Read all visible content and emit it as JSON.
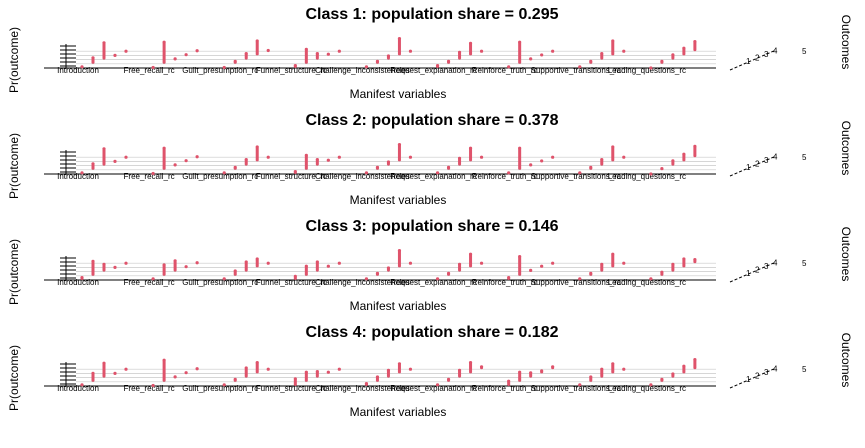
{
  "chart_data": {
    "type": "bar",
    "subtype": "3d-bar (poLCA latent class item-response plot)",
    "xlabel": "Manifest variables",
    "ylabel": "Pr(outcome)",
    "zlabel": "Outcomes",
    "bar_color": "#DF536B",
    "grid": true,
    "variables": [
      "Introduction",
      "Free_recall_rc",
      "Guilt_presumption_rc",
      "Funnel_structure_rc",
      "Challenge_inconsistencies",
      "Request_explanation_rc",
      "Reinforce_truth_rc",
      "Supportive_transitions_rc",
      "Leading_questions_rc"
    ],
    "outcomes": [
      "1",
      "2",
      "3",
      "4",
      "5"
    ],
    "panels": [
      {
        "title": "Class 1: population share = 0.295",
        "values": [
          [
            0.05,
            0.25,
            0.7,
            0.0,
            0.0
          ],
          [
            0.02,
            0.9,
            0.03,
            0.03,
            0.02
          ],
          [
            0.02,
            0.1,
            0.25,
            0.6,
            0.03
          ],
          [
            0.1,
            0.6,
            0.25,
            0.05,
            0.0
          ],
          [
            0.05,
            0.1,
            0.15,
            0.7,
            0.0
          ],
          [
            0.1,
            0.1,
            0.3,
            0.5,
            0.0
          ],
          [
            0.05,
            0.9,
            0.03,
            0.02,
            0.0
          ],
          [
            0.05,
            0.1,
            0.25,
            0.6,
            0.0
          ],
          [
            0.0,
            0.1,
            0.2,
            0.3,
            0.4
          ]
        ]
      },
      {
        "title": "Class 2: population share = 0.378",
        "values": [
          [
            0.05,
            0.25,
            0.7,
            0.0,
            0.0
          ],
          [
            0.02,
            0.9,
            0.03,
            0.03,
            0.02
          ],
          [
            0.05,
            0.1,
            0.25,
            0.6,
            0.0
          ],
          [
            0.1,
            0.6,
            0.25,
            0.05,
            0.0
          ],
          [
            0.05,
            0.1,
            0.15,
            0.7,
            0.0
          ],
          [
            0.05,
            0.1,
            0.3,
            0.55,
            0.0
          ],
          [
            0.05,
            0.9,
            0.03,
            0.02,
            0.0
          ],
          [
            0.05,
            0.1,
            0.25,
            0.6,
            0.0
          ],
          [
            0.0,
            0.05,
            0.2,
            0.3,
            0.45
          ]
        ]
      },
      {
        "title": "Class 3: population share = 0.146",
        "values": [
          [
            0.1,
            0.6,
            0.3,
            0.0,
            0.0
          ],
          [
            0.05,
            0.45,
            0.45,
            0.03,
            0.02
          ],
          [
            0.05,
            0.2,
            0.4,
            0.35,
            0.0
          ],
          [
            0.15,
            0.4,
            0.4,
            0.05,
            0.0
          ],
          [
            0.05,
            0.1,
            0.15,
            0.7,
            0.0
          ],
          [
            0.05,
            0.1,
            0.3,
            0.55,
            0.0
          ],
          [
            0.1,
            0.8,
            0.05,
            0.05,
            0.0
          ],
          [
            0.05,
            0.1,
            0.3,
            0.55,
            0.0
          ],
          [
            0.05,
            0.15,
            0.3,
            0.35,
            0.15
          ]
        ]
      },
      {
        "title": "Class 4: population share = 0.182",
        "values": [
          [
            0.05,
            0.35,
            0.6,
            0.0,
            0.0
          ],
          [
            0.02,
            0.9,
            0.03,
            0.03,
            0.02
          ],
          [
            0.05,
            0.1,
            0.4,
            0.45,
            0.0
          ],
          [
            0.3,
            0.4,
            0.25,
            0.05,
            0.0
          ],
          [
            0.1,
            0.2,
            0.3,
            0.4,
            0.0
          ],
          [
            0.05,
            0.1,
            0.3,
            0.45,
            0.1
          ],
          [
            0.2,
            0.4,
            0.2,
            0.1,
            0.1
          ],
          [
            0.05,
            0.2,
            0.35,
            0.4,
            0.0
          ],
          [
            0.05,
            0.1,
            0.15,
            0.3,
            0.4
          ]
        ]
      }
    ]
  }
}
